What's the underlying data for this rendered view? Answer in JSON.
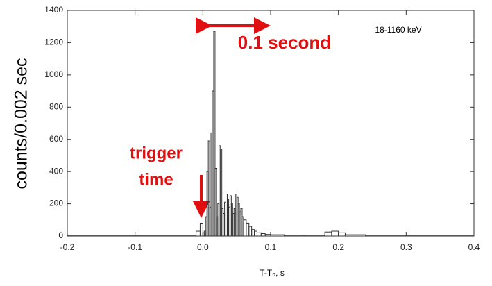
{
  "chart_data": {
    "type": "histogram",
    "y_label": "counts/0.002 sec",
    "x_label": "T-T₀, s",
    "annotations": {
      "energy": "18-1160 keV",
      "interval": "0.1 second",
      "trigger_line1": "trigger",
      "trigger_line2": "time"
    },
    "bins": [
      -0.2,
      -0.01,
      -0.004,
      0.0,
      0.002,
      0.004,
      0.006,
      0.008,
      0.01,
      0.012,
      0.014,
      0.016,
      0.018,
      0.02,
      0.022,
      0.024,
      0.026,
      0.028,
      0.03,
      0.032,
      0.034,
      0.036,
      0.038,
      0.04,
      0.042,
      0.044,
      0.046,
      0.048,
      0.05,
      0.052,
      0.054,
      0.056,
      0.058,
      0.06,
      0.064,
      0.068,
      0.072,
      0.076,
      0.08,
      0.086,
      0.092,
      0.1,
      0.12,
      0.15,
      0.18,
      0.19,
      0.2,
      0.21,
      0.24,
      0.4
    ],
    "values": [
      5,
      30,
      80,
      20,
      30,
      120,
      400,
      590,
      180,
      640,
      900,
      1270,
      420,
      120,
      200,
      560,
      540,
      170,
      140,
      210,
      260,
      230,
      180,
      250,
      200,
      140,
      170,
      260,
      240,
      200,
      150,
      170,
      120,
      100,
      80,
      60,
      40,
      30,
      20,
      15,
      10,
      8,
      5,
      5,
      25,
      30,
      20,
      8,
      5
    ],
    "color": "#333333",
    "xlim": [
      -0.2,
      0.4
    ],
    "ylim": [
      0,
      1400
    ],
    "xticks": [
      -0.2,
      -0.1,
      {
        "value": 0,
        "label": "0.0"
      },
      0.1,
      0.2,
      0.3,
      0.4
    ],
    "yticks": [
      0,
      200,
      400,
      600,
      800,
      1000,
      1200,
      1400
    ]
  }
}
